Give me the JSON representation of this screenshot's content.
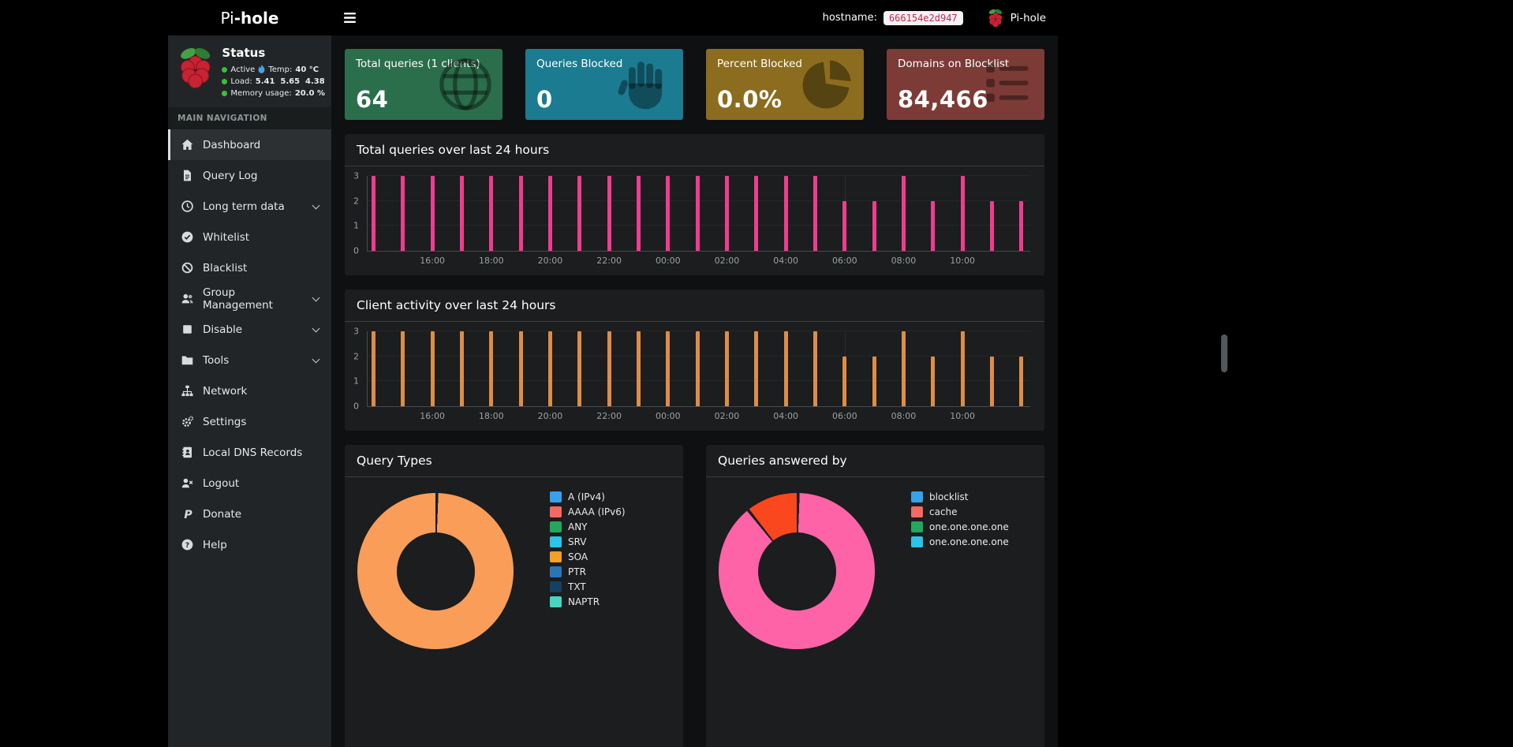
{
  "navbar": {
    "brand": {
      "light": "Pi",
      "bold": "-hole"
    },
    "hostname_label": "hostname:",
    "hostname_value": "666154e2d947",
    "product": "Pi-hole"
  },
  "sidebar": {
    "status": {
      "title": "Status",
      "active_label": "Active",
      "temp_label": "Temp:",
      "temp_value": "40 °C",
      "load_label": "Load:",
      "load_values": "5.41  5.65  4.38",
      "memory_label": "Memory usage:",
      "memory_value": "20.0 %"
    },
    "section_header": "MAIN NAVIGATION",
    "menu": [
      {
        "label": "Dashboard",
        "icon": "home-icon",
        "active": true
      },
      {
        "label": "Query Log",
        "icon": "file-icon"
      },
      {
        "label": "Long term data",
        "icon": "clock-icon",
        "chevron": true
      },
      {
        "label": "Whitelist",
        "icon": "check-circle-icon"
      },
      {
        "label": "Blacklist",
        "icon": "ban-icon"
      },
      {
        "label": "Group Management",
        "icon": "users-icon",
        "chevron": true
      },
      {
        "label": "Disable",
        "icon": "stop-icon",
        "chevron": true
      },
      {
        "label": "Tools",
        "icon": "folder-icon",
        "chevron": true
      },
      {
        "label": "Network",
        "icon": "sitemap-icon"
      },
      {
        "label": "Settings",
        "icon": "gears-icon"
      },
      {
        "label": "Local DNS Records",
        "icon": "address-book-icon"
      },
      {
        "label": "Logout",
        "icon": "user-logout-icon"
      },
      {
        "label": "Donate",
        "icon": "paypal-icon"
      },
      {
        "label": "Help",
        "icon": "question-circle-icon"
      }
    ]
  },
  "cards": [
    {
      "label": "Total queries (1 clients)",
      "value": "64",
      "color": "#2a6e4b",
      "icon": "globe-icon"
    },
    {
      "label": "Queries Blocked",
      "value": "0",
      "color": "#1a7b91",
      "icon": "hand-icon"
    },
    {
      "label": "Percent Blocked",
      "value": "0.0%",
      "color": "#8c6c1e",
      "icon": "pie-chart-icon"
    },
    {
      "label": "Domains on Blocklist",
      "value": "84,466",
      "color": "#7c3b36",
      "icon": "list-icon"
    }
  ],
  "chart_data": [
    {
      "id": "total-queries-24h",
      "type": "bar",
      "title": "Total queries over last 24 hours",
      "color": "#f03c90",
      "xlabel": "",
      "ylabel": "",
      "ylim": [
        0,
        3
      ],
      "yticks": [
        0,
        1,
        2,
        3
      ],
      "x_domain": [
        13.8,
        36.3
      ],
      "x_start_hour": 14,
      "x_interval_hours": 1,
      "values": [
        3,
        3,
        3,
        3,
        3,
        3,
        3,
        3,
        3,
        3,
        3,
        3,
        3,
        3,
        3,
        3,
        2,
        2,
        3,
        2,
        3,
        2,
        2
      ],
      "ticks": [
        {
          "t": 16,
          "label": "16:00"
        },
        {
          "t": 18,
          "label": "18:00"
        },
        {
          "t": 20,
          "label": "20:00"
        },
        {
          "t": 22,
          "label": "22:00"
        },
        {
          "t": 24,
          "label": "00:00"
        },
        {
          "t": 26,
          "label": "02:00"
        },
        {
          "t": 28,
          "label": "04:00"
        },
        {
          "t": 30,
          "label": "06:00"
        },
        {
          "t": 32,
          "label": "08:00"
        },
        {
          "t": 34,
          "label": "10:00"
        }
      ]
    },
    {
      "id": "client-activity-24h",
      "type": "bar",
      "title": "Client activity over last 24 hours",
      "color": "#de8d47",
      "xlabel": "",
      "ylabel": "",
      "ylim": [
        0,
        3
      ],
      "yticks": [
        0,
        1,
        2,
        3
      ],
      "x_domain": [
        13.8,
        36.3
      ],
      "x_start_hour": 14,
      "x_interval_hours": 1,
      "values": [
        3,
        3,
        3,
        3,
        3,
        3,
        3,
        3,
        3,
        3,
        3,
        3,
        3,
        3,
        3,
        3,
        2,
        2,
        3,
        2,
        3,
        2,
        2
      ],
      "ticks": [
        {
          "t": 16,
          "label": "16:00"
        },
        {
          "t": 18,
          "label": "18:00"
        },
        {
          "t": 20,
          "label": "20:00"
        },
        {
          "t": 22,
          "label": "22:00"
        },
        {
          "t": 24,
          "label": "00:00"
        },
        {
          "t": 26,
          "label": "02:00"
        },
        {
          "t": 28,
          "label": "04:00"
        },
        {
          "t": 30,
          "label": "06:00"
        },
        {
          "t": 32,
          "label": "08:00"
        },
        {
          "t": 34,
          "label": "10:00"
        }
      ]
    },
    {
      "id": "query-types",
      "type": "pie",
      "title": "Query Types",
      "legend_position": "right",
      "segments": [
        {
          "label": "SOA",
          "value": 100,
          "color": "#f99d58"
        }
      ],
      "legend": [
        {
          "label": "A (IPv4)",
          "color": "#36a2eb"
        },
        {
          "label": "AAAA (IPv6)",
          "color": "#f56962"
        },
        {
          "label": "ANY",
          "color": "#21a85c"
        },
        {
          "label": "SRV",
          "color": "#2bc3e6"
        },
        {
          "label": "SOA",
          "color": "#f2a124"
        },
        {
          "label": "PTR",
          "color": "#2a76b5"
        },
        {
          "label": "TXT",
          "color": "#16405f"
        },
        {
          "label": "NAPTR",
          "color": "#46d6c2"
        }
      ]
    },
    {
      "id": "queries-answered-by",
      "type": "pie",
      "title": "Queries answered by",
      "legend_position": "right",
      "segments": [
        {
          "label": "one.one.one.one",
          "value": 89,
          "color": "#ff63a7"
        },
        {
          "label": "cache",
          "value": 11,
          "color": "#fb471e"
        }
      ],
      "legend": [
        {
          "label": "blocklist",
          "color": "#36a2eb"
        },
        {
          "label": "cache",
          "color": "#f56962"
        },
        {
          "label": "one.one.one.one",
          "color": "#21a85c"
        },
        {
          "label": "one.one.one.one",
          "color": "#2bc3e6"
        }
      ]
    }
  ]
}
